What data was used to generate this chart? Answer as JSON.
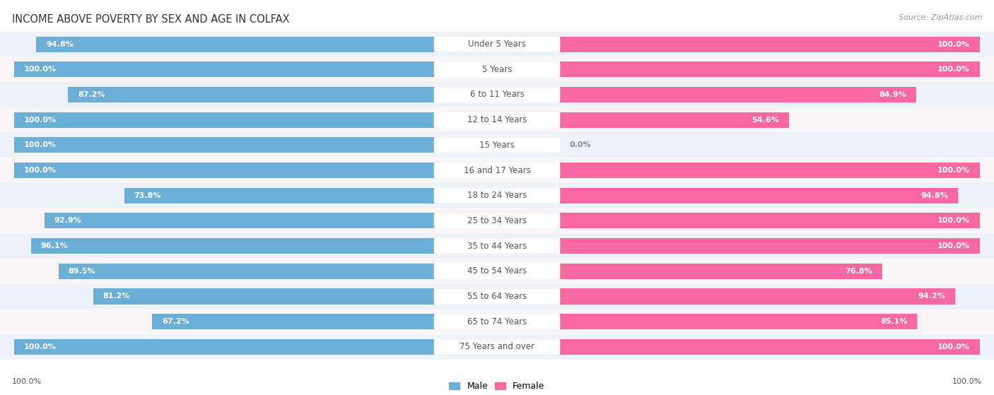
{
  "title": "INCOME ABOVE POVERTY BY SEX AND AGE IN COLFAX",
  "source": "Source: ZipAtlas.com",
  "categories": [
    "Under 5 Years",
    "5 Years",
    "6 to 11 Years",
    "12 to 14 Years",
    "15 Years",
    "16 and 17 Years",
    "18 to 24 Years",
    "25 to 34 Years",
    "35 to 44 Years",
    "45 to 54 Years",
    "55 to 64 Years",
    "65 to 74 Years",
    "75 Years and over"
  ],
  "male_values": [
    94.8,
    100.0,
    87.2,
    100.0,
    100.0,
    100.0,
    73.8,
    92.9,
    96.1,
    89.5,
    81.2,
    67.2,
    100.0
  ],
  "female_values": [
    100.0,
    100.0,
    84.9,
    54.6,
    0.0,
    100.0,
    94.8,
    100.0,
    100.0,
    76.8,
    94.2,
    85.1,
    100.0
  ],
  "male_color": "#6baed6",
  "female_color": "#f768a1",
  "female_color_light": "#fbb4c9",
  "male_label": "Male",
  "female_label": "Female",
  "background_color": "#ffffff",
  "row_color_odd": "#e8eef5",
  "row_color_even": "#f5f0f5",
  "bar_height": 0.62,
  "title_fontsize": 10.5,
  "label_fontsize": 8.5,
  "value_fontsize": 8,
  "legend_fontsize": 9,
  "axis_label_fontsize": 8,
  "center_label_color": "#555555",
  "value_text_color": "#ffffff",
  "footer_value_left": "100.0%",
  "footer_value_right": "100.0%"
}
